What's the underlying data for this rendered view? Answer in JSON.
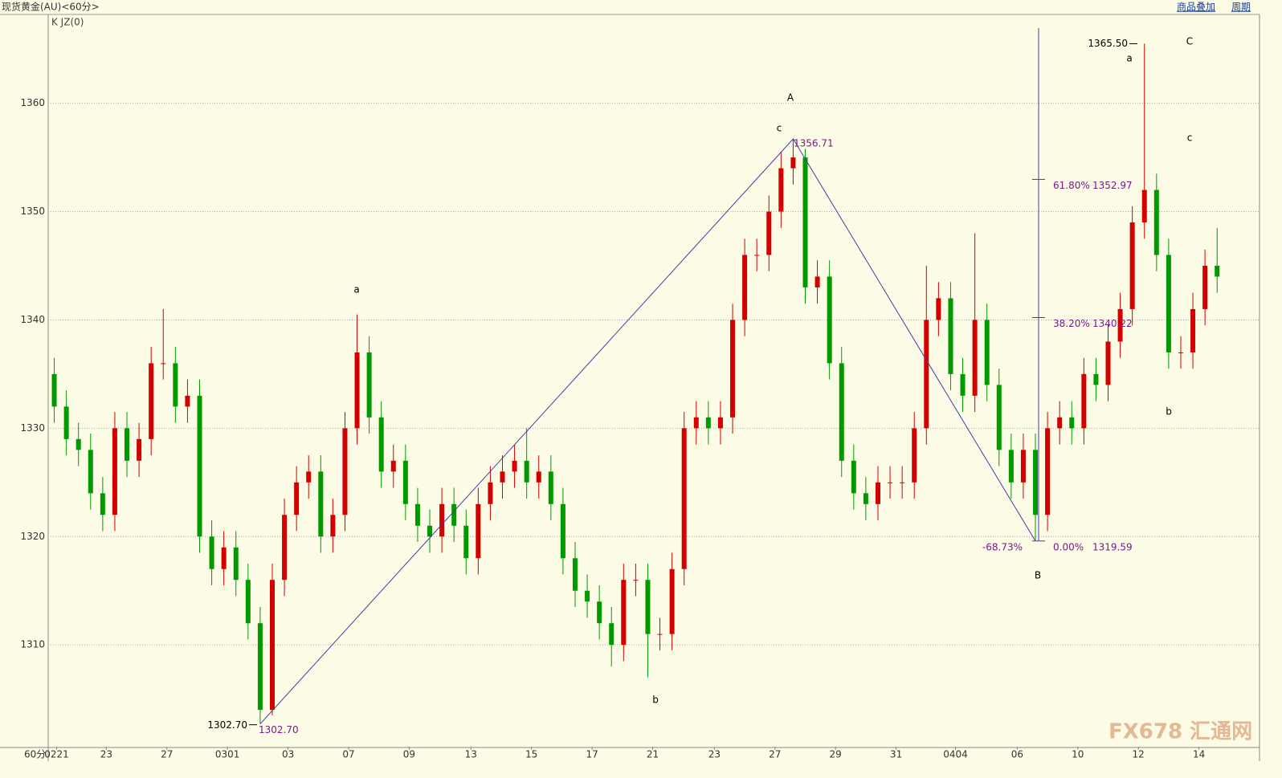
{
  "header": {
    "title": "现货黄金(AU)<60分>",
    "indicator": "K JZ(0)",
    "links": [
      "商品叠加",
      "周期"
    ],
    "period": "60分"
  },
  "watermark": "FX678 汇通网",
  "chart_data": {
    "type": "candlestick",
    "open": [
      1335,
      1332,
      1329,
      1328,
      1324,
      1322,
      1330,
      1327,
      1329,
      1336,
      1336,
      1332,
      1333,
      1320,
      1317,
      1319,
      1316,
      1312,
      1304,
      1316,
      1322,
      1325,
      1326,
      1320,
      1322,
      1330,
      1337,
      1331,
      1326,
      1327,
      1323,
      1321,
      1320,
      1323,
      1321,
      1318,
      1323,
      1325,
      1326,
      1327,
      1325,
      1326,
      1323,
      1318,
      1315,
      1314,
      1312,
      1310,
      1316,
      1316,
      1311,
      1311,
      1317,
      1330,
      1331,
      1330,
      1331,
      1340,
      1346,
      1346,
      1350,
      1354,
      1355,
      1343,
      1344,
      1336,
      1327,
      1324,
      1323,
      1325,
      1325,
      1325,
      1330,
      1340,
      1342,
      1335,
      1333,
      1340,
      1334,
      1328,
      1325,
      1328,
      1322,
      1330,
      1331,
      1330,
      1335,
      1334,
      1338,
      1341,
      1349,
      1352,
      1346,
      1337,
      1337,
      1341,
      1345
    ],
    "high": [
      1336.5,
      1333.5,
      1330.5,
      1329.5,
      1325.5,
      1331.5,
      1331.5,
      1330.5,
      1337.5,
      1341,
      1337.5,
      1334.5,
      1334.5,
      1321.5,
      1320.5,
      1320.5,
      1317.5,
      1313.5,
      1317.5,
      1323.5,
      1326.5,
      1327.5,
      1327.5,
      1323.5,
      1331.5,
      1340.5,
      1338.5,
      1332.5,
      1328.5,
      1328.5,
      1324.5,
      1322.5,
      1324.5,
      1324.5,
      1322.5,
      1324.5,
      1326.5,
      1327.5,
      1328.5,
      1330,
      1327.5,
      1327.5,
      1324.5,
      1319.5,
      1316.5,
      1315.5,
      1313.5,
      1317.5,
      1317.5,
      1317.5,
      1312.5,
      1318.5,
      1331.5,
      1332.5,
      1332.5,
      1332.5,
      1341.5,
      1347.5,
      1347.5,
      1351.5,
      1355.5,
      1356.71,
      1355.8,
      1345.5,
      1345.5,
      1337.5,
      1328.5,
      1325.5,
      1326.5,
      1326.5,
      1326.5,
      1331.5,
      1345,
      1343.5,
      1343.5,
      1336.5,
      1348,
      1341.5,
      1335.5,
      1329.5,
      1329.5,
      1329.5,
      1331.5,
      1332.5,
      1332.5,
      1336.5,
      1336.5,
      1339.5,
      1342.5,
      1350.5,
      1365.5,
      1353.5,
      1347.5,
      1338.5,
      1342.5,
      1346.5,
      1348.5
    ],
    "low": [
      1330.5,
      1327.5,
      1326.5,
      1322.5,
      1320.5,
      1320.5,
      1325.5,
      1325.5,
      1327.5,
      1334.5,
      1330.5,
      1330.5,
      1318.5,
      1315.5,
      1315.5,
      1314.5,
      1310.5,
      1302.7,
      1303.5,
      1314.5,
      1320.5,
      1323.5,
      1318.5,
      1318.5,
      1320.5,
      1328.5,
      1329.5,
      1324.5,
      1324.5,
      1321.5,
      1319.5,
      1318.5,
      1318.5,
      1319.5,
      1316.5,
      1316.5,
      1321.5,
      1323.5,
      1324.5,
      1323.5,
      1323.5,
      1321.5,
      1316.5,
      1313.5,
      1312.5,
      1310.5,
      1308,
      1308.5,
      1314.5,
      1307,
      1309.5,
      1309.5,
      1315.5,
      1328.5,
      1328.5,
      1328.5,
      1329.5,
      1338.5,
      1344.5,
      1344.5,
      1348.5,
      1352.5,
      1341.5,
      1341.5,
      1334.5,
      1325.5,
      1322.5,
      1321.5,
      1321.5,
      1323.5,
      1323.5,
      1323.5,
      1328.5,
      1338.5,
      1333.5,
      1331.5,
      1331.5,
      1332.5,
      1326.5,
      1323.5,
      1323.5,
      1319.59,
      1320.5,
      1328.5,
      1328.5,
      1328.5,
      1332.5,
      1332.5,
      1336.5,
      1339.5,
      1347.5,
      1344.5,
      1335.5,
      1335.5,
      1335.5,
      1339.5,
      1342.5
    ],
    "close": [
      1332,
      1329,
      1328,
      1324,
      1322,
      1330,
      1327,
      1329,
      1336,
      1336,
      1332,
      1333,
      1320,
      1317,
      1319,
      1316,
      1312,
      1304,
      1316,
      1322,
      1325,
      1326,
      1320,
      1322,
      1330,
      1337,
      1331,
      1326,
      1327,
      1323,
      1321,
      1320,
      1323,
      1321,
      1318,
      1323,
      1325,
      1326,
      1327,
      1325,
      1326,
      1323,
      1318,
      1315,
      1314,
      1312,
      1310,
      1316,
      1316,
      1311,
      1311,
      1317,
      1330,
      1331,
      1330,
      1331,
      1340,
      1346,
      1346,
      1350,
      1354,
      1355,
      1343,
      1344,
      1336,
      1327,
      1324,
      1323,
      1325,
      1325,
      1325,
      1330,
      1340,
      1342,
      1335,
      1333,
      1340,
      1334,
      1328,
      1325,
      1328,
      1322,
      1330,
      1331,
      1330,
      1335,
      1334,
      1338,
      1341,
      1349,
      1352,
      1346,
      1337,
      1337,
      1341,
      1345,
      1344
    ],
    "up_color": "#d40000",
    "down_color": "#009a00",
    "xlim": [
      0,
      100
    ],
    "xticks": [
      {
        "value": 0.7,
        "label": "0221"
      },
      {
        "value": 4.8,
        "label": "23"
      },
      {
        "value": 9.8,
        "label": "27"
      },
      {
        "value": 14.8,
        "label": "0301"
      },
      {
        "value": 19.8,
        "label": "03"
      },
      {
        "value": 24.8,
        "label": "07"
      },
      {
        "value": 29.8,
        "label": "09"
      },
      {
        "value": 34.9,
        "label": "13"
      },
      {
        "value": 39.9,
        "label": "15"
      },
      {
        "value": 44.9,
        "label": "17"
      },
      {
        "value": 49.9,
        "label": "21"
      },
      {
        "value": 55,
        "label": "23"
      },
      {
        "value": 60,
        "label": "27"
      },
      {
        "value": 65,
        "label": "29"
      },
      {
        "value": 70,
        "label": "31"
      },
      {
        "value": 74.9,
        "label": "0404"
      },
      {
        "value": 80,
        "label": "06"
      },
      {
        "value": 85,
        "label": "10"
      },
      {
        "value": 90,
        "label": "12"
      },
      {
        "value": 95,
        "label": "14"
      }
    ],
    "ylim": [
      1300.6,
      1368.2
    ],
    "yticks": [
      1310,
      1320,
      1330,
      1340,
      1350,
      1360
    ],
    "grid": true,
    "extreme_labels": [
      {
        "value": 1302.7,
        "label": "1302.70"
      },
      {
        "value": 1302.7,
        "label": "1302.70"
      },
      1356.71,
      {
        "value": 1365.5,
        "label": "1365.50"
      }
    ],
    "fibonacci": {
      "levels": [
        {
          "ratio": "61.80%",
          "price": 1352.97
        },
        {
          "ratio": "38.20%",
          "price": 1340.22
        },
        {
          "ratio": "0.00%",
          "price": 1319.59
        }
      ],
      "extension": "-68.73%"
    },
    "wave_labels": [
      "a",
      "b",
      "c",
      "A",
      "B",
      "a",
      "b",
      "c",
      "C"
    ]
  }
}
